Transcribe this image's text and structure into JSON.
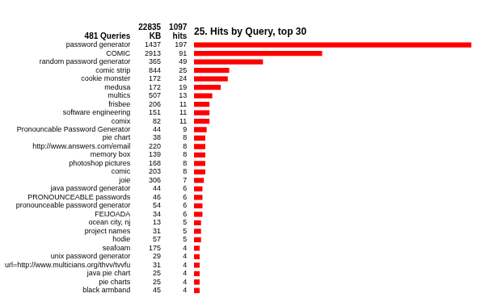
{
  "chart_data": {
    "type": "bar",
    "orientation": "horizontal",
    "title": "25. Hits by Query, top 30",
    "categories": [
      "password generator",
      "COMIC",
      "random password generator",
      "comic strip",
      "cookie monster",
      "medusa",
      "multics",
      "frisbee",
      "software engineering",
      "comix",
      "Pronouncable Password Generator",
      "pie chart",
      "http://www.answers.com/email",
      "memory box",
      "photoshop pictures",
      "comic",
      "joie",
      "java password generator",
      "PRONOUNCEABLE passwords",
      "pronounceable password generator",
      "FEIJOADA",
      "ocean city, nj",
      "project names",
      "hodie",
      "seafoam",
      "unix password generator",
      "url=http://www.multicians.org/thvv/tvvfu",
      "java pie chart",
      "pie charts",
      "black armband"
    ],
    "values": [
      197,
      91,
      49,
      25,
      24,
      19,
      13,
      11,
      11,
      11,
      9,
      8,
      8,
      8,
      8,
      8,
      7,
      6,
      6,
      6,
      6,
      5,
      5,
      5,
      4,
      4,
      4,
      4,
      4,
      4
    ],
    "kb": [
      1437,
      2913,
      365,
      844,
      172,
      172,
      507,
      206,
      151,
      82,
      44,
      38,
      220,
      139,
      168,
      203,
      306,
      44,
      46,
      54,
      34,
      13,
      31,
      57,
      175,
      29,
      31,
      25,
      25,
      45
    ],
    "categories_label": "481 Queries",
    "kb_label": "KB",
    "values_label": "hits",
    "kb_total": 22835,
    "values_total": 1097,
    "color": "#ff0000",
    "xlim": [
      0,
      200.94
    ],
    "tick_labels": false,
    "grid": false,
    "data_labels": true
  }
}
